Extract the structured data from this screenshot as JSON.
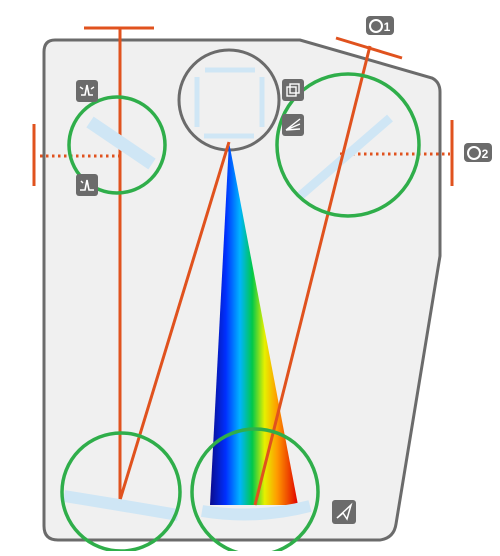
{
  "labels": {
    "camera_1": "1",
    "camera_2": "2"
  },
  "colors": {
    "housing_fill": "#f0f0f0",
    "housing_stroke": "#6b6b6b",
    "beam": "#e0521e",
    "highlight_ring": "#2fae4a",
    "optic": "#cfe6f5",
    "icon_bg": "#6b6b6b",
    "icon_fg": "#ffffff"
  },
  "icons": {
    "top_left_mirror_upper": "peak-align-icon",
    "top_left_mirror_lower": "single-peak-icon",
    "grating_upper": "cube-rotate-icon",
    "grating_lower": "dispersion-icon",
    "detector": "paper-plane-icon",
    "camera": "camera-icon"
  }
}
